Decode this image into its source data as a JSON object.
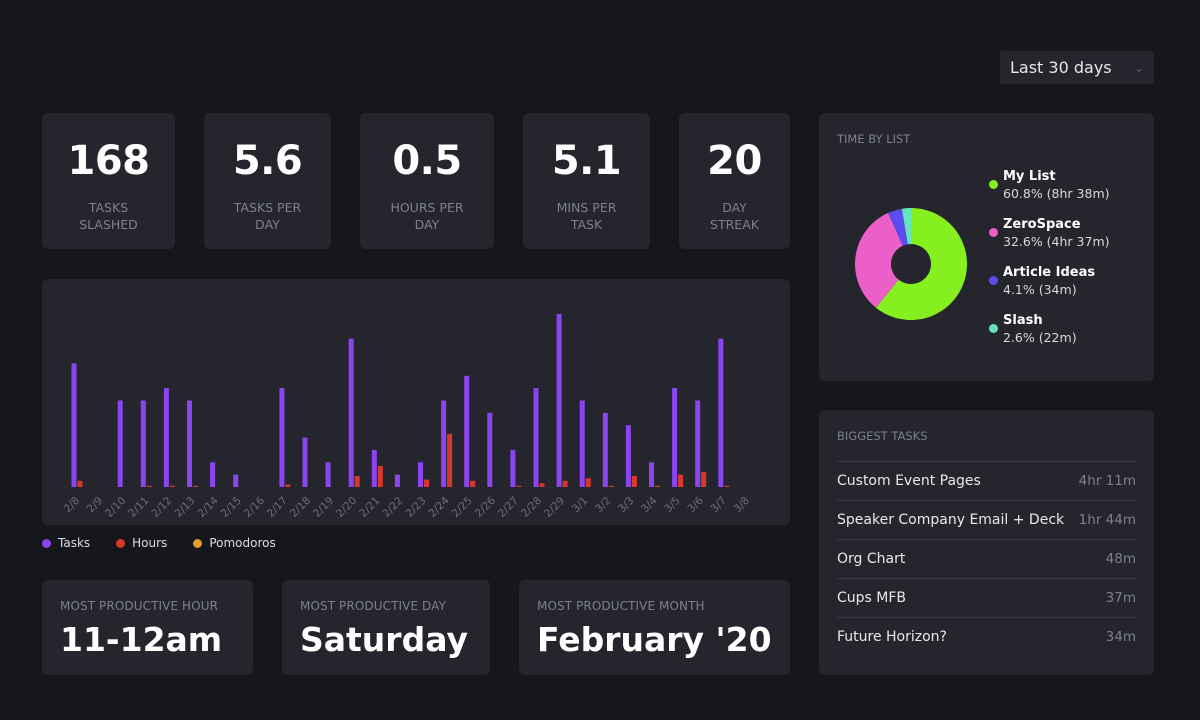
{
  "filter": {
    "range_label": "Last 30 days"
  },
  "stats": [
    {
      "value": "168",
      "label": "TASKS\nSLASHED"
    },
    {
      "value": "5.6",
      "label": "TASKS PER\nDAY"
    },
    {
      "value": "0.5",
      "label": "HOURS PER\nDAY"
    },
    {
      "value": "5.1",
      "label": "MINS PER\nTASK"
    },
    {
      "value": "20",
      "label": "DAY\nSTREAK"
    }
  ],
  "chart_data": {
    "type": "bar",
    "title": "",
    "xlabel": "",
    "ylabel": "",
    "ylim": [
      0,
      14
    ],
    "categories": [
      "2/8",
      "2/9",
      "2/10",
      "2/11",
      "2/12",
      "2/13",
      "2/14",
      "2/15",
      "2/16",
      "2/17",
      "2/18",
      "2/19",
      "2/20",
      "2/21",
      "2/22",
      "2/23",
      "2/24",
      "2/25",
      "2/26",
      "2/27",
      "2/28",
      "2/29",
      "3/1",
      "3/2",
      "3/3",
      "3/4",
      "3/5",
      "3/6",
      "3/7",
      "3/8"
    ],
    "series": [
      {
        "name": "Tasks",
        "color": "#8b45f0",
        "values": [
          10,
          0,
          7,
          7,
          8,
          7,
          2,
          1,
          0,
          8,
          4,
          2,
          12,
          3,
          1,
          2,
          7,
          9,
          6,
          3,
          8,
          14,
          7,
          6,
          5,
          2,
          8,
          7,
          12,
          0
        ]
      },
      {
        "name": "Hours",
        "color": "#d7382b",
        "values": [
          0.5,
          0,
          0,
          0.1,
          0.1,
          0.1,
          0,
          0,
          0,
          0.2,
          0,
          0,
          0.9,
          1.7,
          0,
          0.6,
          4.3,
          0.5,
          0,
          0.1,
          0.3,
          0.5,
          0.7,
          0.1,
          0.9,
          0.1,
          1.0,
          1.2,
          0.1,
          0
        ]
      },
      {
        "name": "Pomodoros",
        "color": "#e39b2a",
        "values": [
          0,
          0,
          0,
          0,
          0,
          0,
          0,
          0,
          0,
          0,
          0,
          0,
          0,
          0,
          0,
          0,
          0,
          0,
          0,
          0,
          0,
          0,
          0,
          0,
          0,
          0,
          0,
          0,
          0,
          0
        ]
      }
    ],
    "legend": [
      "Tasks",
      "Hours",
      "Pomodoros"
    ]
  },
  "productive": [
    {
      "title": "MOST PRODUCTIVE HOUR",
      "value": "11-12am"
    },
    {
      "title": "MOST PRODUCTIVE DAY",
      "value": "Saturday"
    },
    {
      "title": "MOST PRODUCTIVE MONTH",
      "value": "February '20"
    }
  ],
  "time_by_list": {
    "title": "TIME BY LIST",
    "items": [
      {
        "name": "My List",
        "detail": "60.8% (8hr 38m)",
        "pct": 60.8,
        "color": "#86ef1f"
      },
      {
        "name": "ZeroSpace",
        "detail": "32.6% (4hr 37m)",
        "pct": 32.6,
        "color": "#ec5ec8"
      },
      {
        "name": "Article Ideas",
        "detail": "4.1% (34m)",
        "pct": 4.1,
        "color": "#5b4cf0"
      },
      {
        "name": "Slash",
        "detail": "2.6% (22m)",
        "pct": 2.6,
        "color": "#63e6bf"
      }
    ]
  },
  "biggest_tasks": {
    "title": "BIGGEST TASKS",
    "items": [
      {
        "name": "Custom Event Pages",
        "time": "4hr 11m"
      },
      {
        "name": "Speaker Company Email + Deck",
        "time": "1hr 44m"
      },
      {
        "name": "Org Chart",
        "time": "48m"
      },
      {
        "name": "Cups MFB",
        "time": "37m"
      },
      {
        "name": "Future Horizon?",
        "time": "34m"
      }
    ]
  }
}
